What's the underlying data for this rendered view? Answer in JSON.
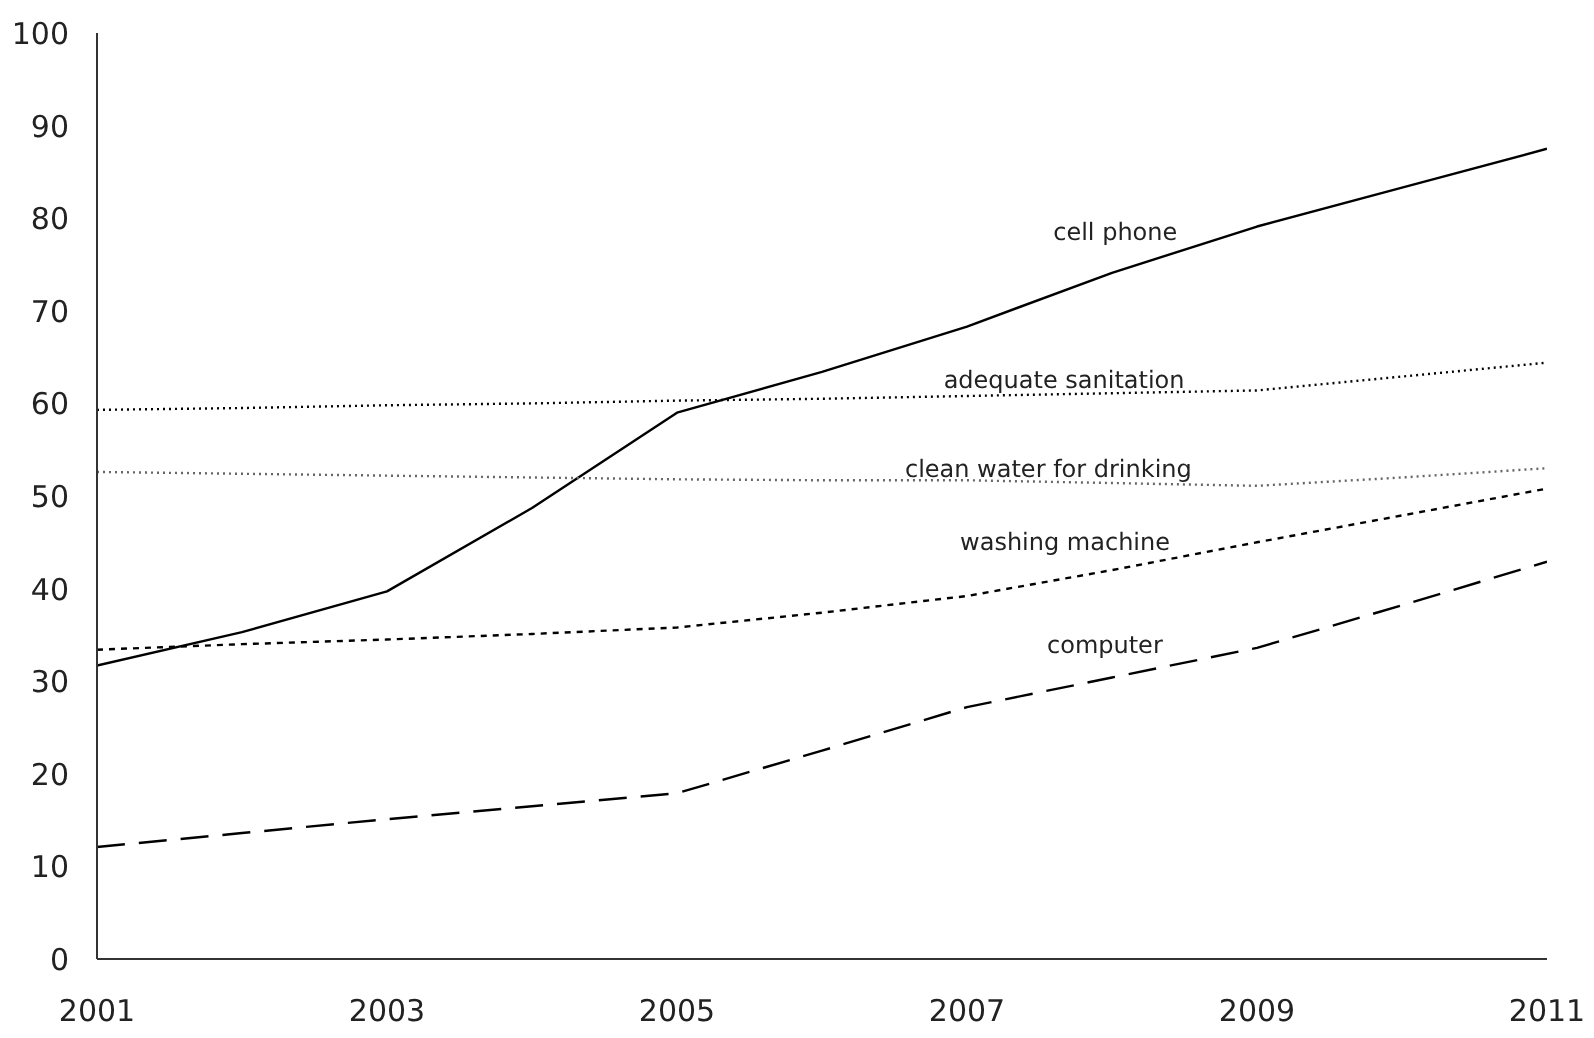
{
  "chart_data": {
    "type": "line",
    "x": [
      2001,
      2002,
      2003,
      2004,
      2005,
      2006,
      2007,
      2008,
      2009,
      2010,
      2011
    ],
    "xlim": [
      2001,
      2011
    ],
    "xticks": [
      2001,
      2003,
      2005,
      2007,
      2009,
      2011
    ],
    "ylim": [
      0,
      100
    ],
    "yticks": [
      0,
      10,
      20,
      30,
      40,
      50,
      60,
      70,
      80,
      90,
      100
    ],
    "grid": false,
    "series": [
      {
        "color": "#000000",
        "line_style": "solid",
        "values": [
          31.7,
          35.3,
          39.7,
          48.7,
          59.0,
          63.4,
          68.3,
          74.1,
          79.1,
          83.3,
          87.5
        ]
      },
      {
        "color": "#000000",
        "line_style": "dotted",
        "values": [
          59.3,
          59.5,
          59.8,
          60.0,
          60.3,
          60.5,
          60.8,
          61.1,
          61.4,
          62.9,
          64.4
        ]
      },
      {
        "color": "#666666",
        "line_style": "dotted",
        "values": [
          52.6,
          52.4,
          52.2,
          52.0,
          51.8,
          51.7,
          51.7,
          51.4,
          51.1,
          52.0,
          53.0
        ]
      },
      {
        "color": "#000000",
        "line_style": "dashed",
        "values": [
          33.4,
          34.0,
          34.5,
          35.1,
          35.8,
          37.4,
          39.2,
          42.0,
          45.0,
          47.9,
          50.8
        ]
      },
      {
        "color": "#000000",
        "line_style": "longdash",
        "values": [
          12.1,
          13.6,
          15.1,
          16.5,
          17.9,
          22.5,
          27.2,
          30.4,
          33.6,
          38.2,
          42.9
        ]
      }
    ],
    "annotations": [
      {
        "text": "cell phone",
        "x": 2008.45,
        "y": 77.0
      },
      {
        "text": "adequate sanitation",
        "x": 2008.5,
        "y": 61.0
      },
      {
        "text": "clean water for drinking",
        "x": 2008.55,
        "y": 51.4
      },
      {
        "text": "washing machine",
        "x": 2008.4,
        "y": 43.5
      },
      {
        "text": "computer",
        "x": 2008.35,
        "y": 32.4
      }
    ]
  }
}
